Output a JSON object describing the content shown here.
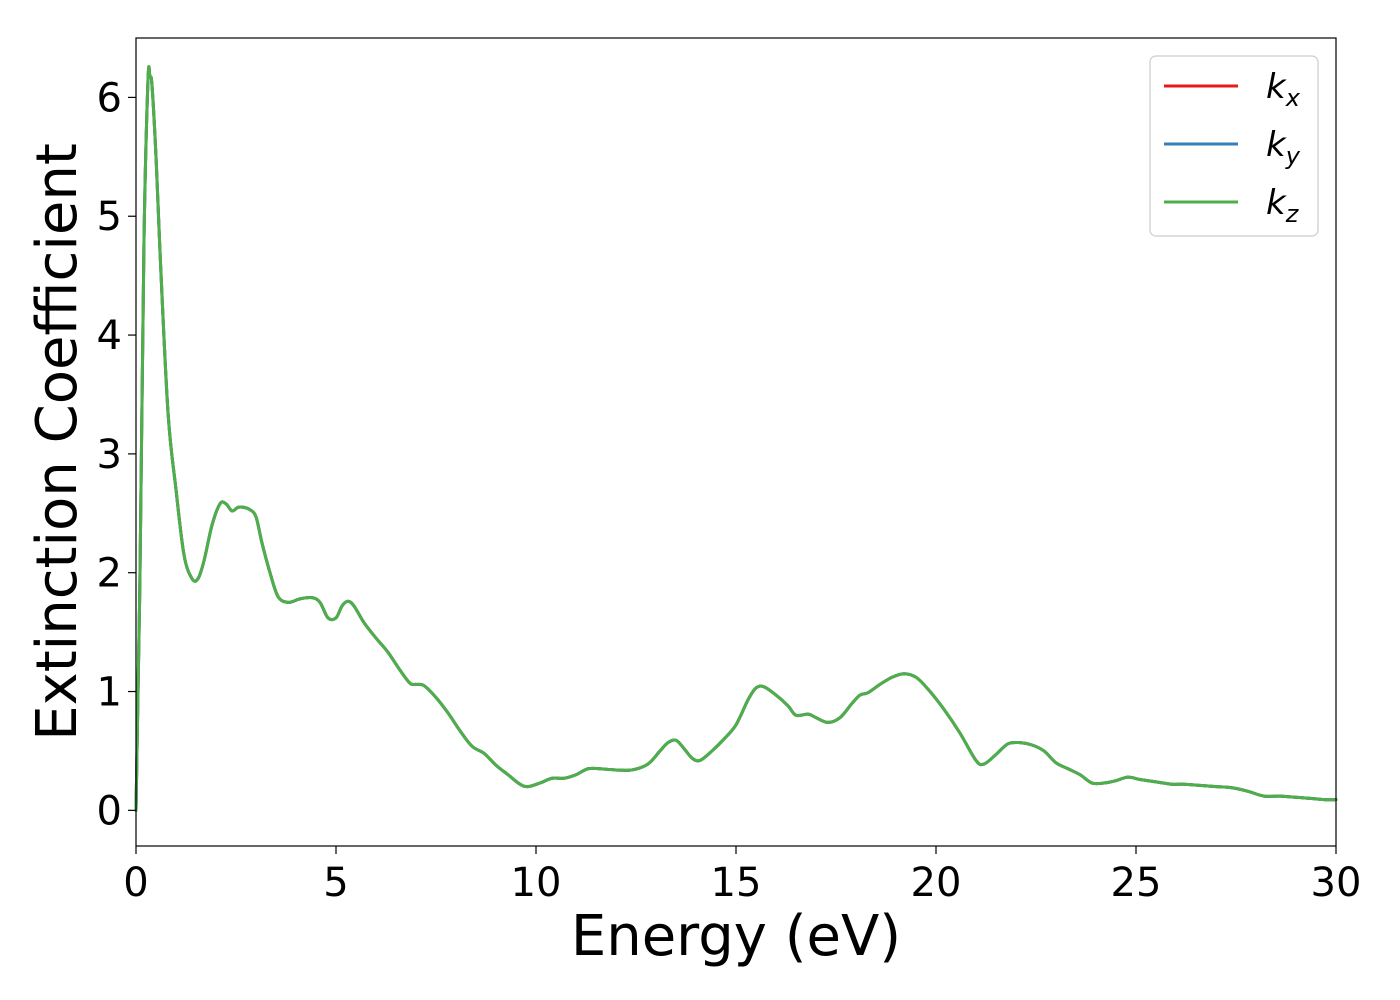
{
  "chart_data": {
    "type": "line",
    "xlabel": "Energy (eV)",
    "ylabel": "Extinction Coefficient",
    "xlim": [
      0,
      30
    ],
    "ylim": [
      -0.3,
      6.5
    ],
    "xticks": [
      "0",
      "5",
      "10",
      "15",
      "20",
      "25",
      "30"
    ],
    "yticks": [
      "0",
      "1",
      "2",
      "3",
      "4",
      "5",
      "6"
    ],
    "grid": false,
    "legend_position": "top-right",
    "x": [
      0.0,
      0.1,
      0.2,
      0.3,
      0.35,
      0.4,
      0.5,
      0.6,
      0.8,
      1.0,
      1.2,
      1.4,
      1.55,
      1.7,
      1.9,
      2.1,
      2.25,
      2.4,
      2.55,
      2.7,
      2.85,
      3.0,
      3.15,
      3.35,
      3.55,
      3.8,
      4.1,
      4.4,
      4.6,
      4.8,
      5.0,
      5.15,
      5.3,
      5.45,
      5.7,
      6.0,
      6.3,
      6.6,
      6.85,
      7.0,
      7.2,
      7.5,
      7.8,
      8.1,
      8.4,
      8.7,
      9.0,
      9.3,
      9.6,
      9.8,
      10.1,
      10.4,
      10.7,
      11.0,
      11.3,
      11.6,
      12.0,
      12.4,
      12.8,
      13.1,
      13.3,
      13.5,
      13.7,
      13.9,
      14.1,
      14.4,
      14.7,
      15.0,
      15.3,
      15.5,
      15.7,
      16.0,
      16.3,
      16.5,
      16.8,
      17.0,
      17.3,
      17.6,
      17.9,
      18.1,
      18.3,
      18.6,
      18.9,
      19.2,
      19.5,
      19.8,
      20.2,
      20.6,
      21.0,
      21.2,
      21.5,
      21.8,
      22.1,
      22.4,
      22.7,
      23.0,
      23.3,
      23.6,
      23.9,
      24.2,
      24.5,
      24.8,
      25.1,
      25.5,
      25.9,
      26.2,
      26.6,
      27.0,
      27.4,
      27.8,
      28.2,
      28.6,
      29.0,
      29.4,
      29.7,
      30.0
    ],
    "series": [
      {
        "name": "k_x",
        "color": "#e41a1c",
        "values": [
          0.0,
          2.0,
          4.8,
          6.15,
          6.17,
          6.1,
          5.5,
          4.7,
          3.35,
          2.7,
          2.15,
          1.95,
          1.95,
          2.1,
          2.4,
          2.58,
          2.58,
          2.52,
          2.55,
          2.55,
          2.53,
          2.47,
          2.25,
          2.0,
          1.8,
          1.75,
          1.78,
          1.79,
          1.75,
          1.62,
          1.62,
          1.72,
          1.76,
          1.72,
          1.58,
          1.45,
          1.33,
          1.18,
          1.07,
          1.06,
          1.05,
          0.95,
          0.82,
          0.67,
          0.54,
          0.48,
          0.38,
          0.3,
          0.22,
          0.2,
          0.23,
          0.27,
          0.27,
          0.3,
          0.35,
          0.35,
          0.34,
          0.34,
          0.39,
          0.5,
          0.57,
          0.59,
          0.52,
          0.44,
          0.42,
          0.5,
          0.6,
          0.72,
          0.93,
          1.03,
          1.04,
          0.97,
          0.88,
          0.8,
          0.81,
          0.78,
          0.74,
          0.78,
          0.9,
          0.97,
          0.99,
          1.06,
          1.12,
          1.15,
          1.12,
          1.02,
          0.85,
          0.65,
          0.42,
          0.39,
          0.47,
          0.56,
          0.57,
          0.55,
          0.5,
          0.4,
          0.35,
          0.3,
          0.23,
          0.23,
          0.25,
          0.28,
          0.26,
          0.24,
          0.22,
          0.22,
          0.21,
          0.2,
          0.19,
          0.16,
          0.12,
          0.12,
          0.11,
          0.1,
          0.09,
          0.09
        ]
      },
      {
        "name": "k_y",
        "color": "#377eb8",
        "values": [
          0.0,
          2.0,
          4.8,
          6.15,
          6.17,
          6.1,
          5.5,
          4.7,
          3.35,
          2.7,
          2.15,
          1.95,
          1.95,
          2.1,
          2.4,
          2.58,
          2.58,
          2.52,
          2.55,
          2.55,
          2.53,
          2.47,
          2.25,
          2.0,
          1.8,
          1.75,
          1.78,
          1.79,
          1.75,
          1.62,
          1.62,
          1.72,
          1.76,
          1.72,
          1.58,
          1.45,
          1.33,
          1.18,
          1.07,
          1.06,
          1.05,
          0.95,
          0.82,
          0.67,
          0.54,
          0.48,
          0.38,
          0.3,
          0.22,
          0.2,
          0.23,
          0.27,
          0.27,
          0.3,
          0.35,
          0.35,
          0.34,
          0.34,
          0.39,
          0.5,
          0.57,
          0.59,
          0.52,
          0.44,
          0.42,
          0.5,
          0.6,
          0.72,
          0.93,
          1.03,
          1.04,
          0.97,
          0.88,
          0.8,
          0.81,
          0.78,
          0.74,
          0.78,
          0.9,
          0.97,
          0.99,
          1.06,
          1.12,
          1.15,
          1.12,
          1.02,
          0.85,
          0.65,
          0.42,
          0.39,
          0.47,
          0.56,
          0.57,
          0.55,
          0.5,
          0.4,
          0.35,
          0.3,
          0.23,
          0.23,
          0.25,
          0.28,
          0.26,
          0.24,
          0.22,
          0.22,
          0.21,
          0.2,
          0.19,
          0.16,
          0.12,
          0.12,
          0.11,
          0.1,
          0.09,
          0.09
        ]
      },
      {
        "name": "k_z",
        "color": "#4daf4a",
        "values": [
          0.0,
          2.0,
          4.8,
          6.15,
          6.17,
          6.1,
          5.5,
          4.7,
          3.35,
          2.7,
          2.15,
          1.95,
          1.95,
          2.1,
          2.4,
          2.58,
          2.58,
          2.52,
          2.55,
          2.55,
          2.53,
          2.47,
          2.25,
          2.0,
          1.8,
          1.75,
          1.78,
          1.79,
          1.75,
          1.62,
          1.62,
          1.72,
          1.76,
          1.72,
          1.58,
          1.45,
          1.33,
          1.18,
          1.07,
          1.06,
          1.05,
          0.95,
          0.82,
          0.67,
          0.54,
          0.48,
          0.38,
          0.3,
          0.22,
          0.2,
          0.23,
          0.27,
          0.27,
          0.3,
          0.35,
          0.35,
          0.34,
          0.34,
          0.39,
          0.5,
          0.57,
          0.59,
          0.52,
          0.44,
          0.42,
          0.5,
          0.6,
          0.72,
          0.93,
          1.03,
          1.04,
          0.97,
          0.88,
          0.8,
          0.81,
          0.78,
          0.74,
          0.78,
          0.9,
          0.97,
          0.99,
          1.06,
          1.12,
          1.15,
          1.12,
          1.02,
          0.85,
          0.65,
          0.42,
          0.39,
          0.47,
          0.56,
          0.57,
          0.55,
          0.5,
          0.4,
          0.35,
          0.3,
          0.23,
          0.23,
          0.25,
          0.28,
          0.26,
          0.24,
          0.22,
          0.22,
          0.21,
          0.2,
          0.19,
          0.16,
          0.12,
          0.12,
          0.11,
          0.1,
          0.09,
          0.09
        ]
      }
    ],
    "legend": [
      {
        "base": "k",
        "sub": "x"
      },
      {
        "base": "k",
        "sub": "y"
      },
      {
        "base": "k",
        "sub": "z"
      }
    ]
  }
}
